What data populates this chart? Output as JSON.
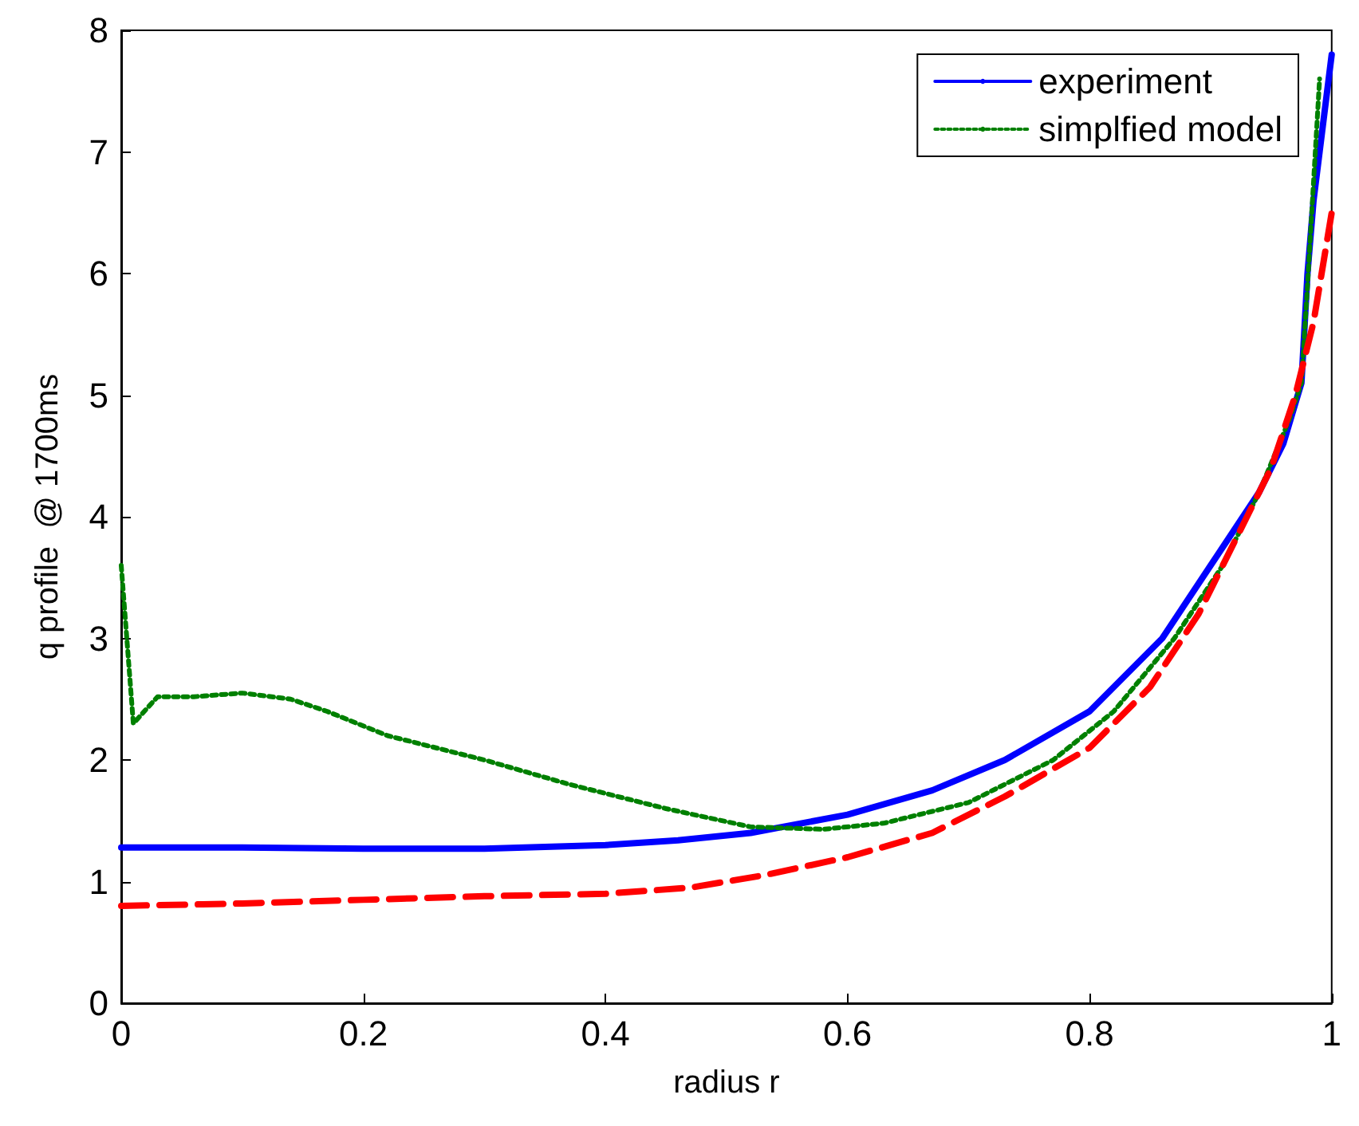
{
  "chart_data": {
    "type": "line",
    "xlabel": "radius r",
    "ylabel": "q profile  @ 1700ms",
    "xlim": [
      0,
      1
    ],
    "ylim": [
      0,
      8
    ],
    "xticks": [
      0,
      0.2,
      0.4,
      0.6,
      0.8,
      1
    ],
    "yticks": [
      0,
      1,
      2,
      3,
      4,
      5,
      6,
      7,
      8
    ],
    "grid": false,
    "legend": "top right",
    "marker": "none",
    "series": [
      {
        "name": "experiment",
        "color": "#0000ff",
        "line_style": "solid",
        "x": [
          0,
          0.1,
          0.2,
          0.3,
          0.4,
          0.46,
          0.52,
          0.6,
          0.67,
          0.73,
          0.8,
          0.86,
          0.9,
          0.94,
          0.96,
          0.975,
          0.98,
          0.985,
          0.99,
          1
        ],
        "values": [
          1.28,
          1.28,
          1.27,
          1.27,
          1.3,
          1.34,
          1.4,
          1.55,
          1.75,
          2.0,
          2.4,
          3.0,
          3.6,
          4.2,
          4.6,
          5.1,
          6.0,
          6.6,
          7.0,
          7.8
        ]
      },
      {
        "name": "simplfied model",
        "color": "#008000",
        "line_style": "dotted",
        "x": [
          0,
          0.01,
          0.03,
          0.06,
          0.1,
          0.14,
          0.17,
          0.22,
          0.3,
          0.37,
          0.45,
          0.52,
          0.58,
          0.63,
          0.7,
          0.77,
          0.82,
          0.87,
          0.91,
          0.94,
          0.965,
          0.975,
          0.98,
          0.99
        ],
        "values": [
          3.6,
          2.3,
          2.52,
          2.52,
          2.55,
          2.5,
          2.4,
          2.2,
          2.0,
          1.8,
          1.6,
          1.45,
          1.43,
          1.48,
          1.65,
          2.0,
          2.4,
          3.0,
          3.6,
          4.2,
          4.8,
          5.1,
          5.9,
          7.6
        ]
      },
      {
        "color": "#ff0000",
        "line_style": "dashed",
        "x": [
          0,
          0.1,
          0.2,
          0.3,
          0.4,
          0.47,
          0.53,
          0.6,
          0.67,
          0.73,
          0.8,
          0.85,
          0.89,
          0.92,
          0.95,
          0.97,
          0.985,
          0.995,
          1
        ],
        "values": [
          0.8,
          0.82,
          0.85,
          0.88,
          0.9,
          0.95,
          1.05,
          1.2,
          1.4,
          1.7,
          2.1,
          2.6,
          3.2,
          3.8,
          4.4,
          5.0,
          5.6,
          6.2,
          6.5
        ]
      }
    ]
  }
}
